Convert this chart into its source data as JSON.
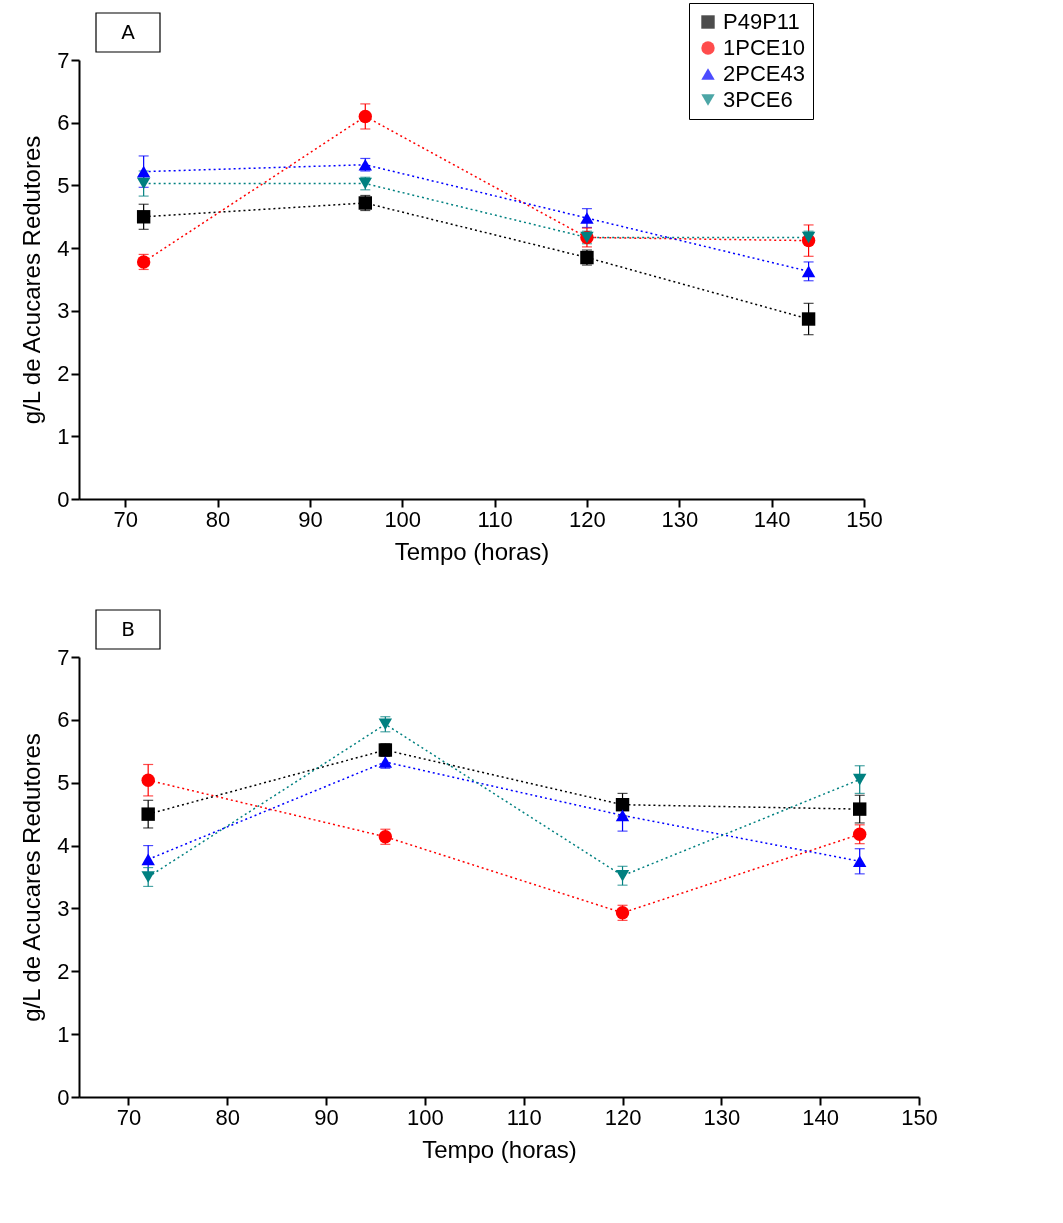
{
  "chart_data": [
    {
      "type": "line",
      "annotations": [
        "A"
      ],
      "xlabel": "Tempo (horas)",
      "ylabel": "g/L de Acucares Redutores",
      "x": [
        72,
        96,
        120,
        144
      ],
      "xlim": [
        65,
        150
      ],
      "xticks": [
        70,
        80,
        90,
        100,
        110,
        120,
        130,
        140,
        150
      ],
      "ylim": [
        0,
        7
      ],
      "yticks": [
        0,
        1,
        2,
        3,
        4,
        5,
        6,
        7
      ],
      "grid": false,
      "legend": "top right",
      "line_style": "dotted",
      "series": [
        {
          "name": "P49P11",
          "color": "#000000",
          "marker": "square",
          "values": [
            4.5,
            4.72,
            3.85,
            2.87
          ],
          "errors": [
            0.2,
            0.12,
            0.12,
            0.25
          ]
        },
        {
          "name": "1PCE10",
          "color": "#ff0000",
          "marker": "circle",
          "values": [
            3.78,
            6.1,
            4.17,
            4.12
          ],
          "errors": [
            0.12,
            0.2,
            0.15,
            0.25
          ]
        },
        {
          "name": "2PCE43",
          "color": "#0000ff",
          "marker": "triangle",
          "values": [
            5.22,
            5.33,
            4.48,
            3.63
          ],
          "errors": [
            0.25,
            0.1,
            0.15,
            0.15
          ]
        },
        {
          "name": "3PCE6",
          "color": "#008080",
          "marker": "triangle-down",
          "values": [
            5.03,
            5.03,
            4.17,
            4.17
          ],
          "errors": [
            0.2,
            0.1,
            0.1,
            0.1
          ]
        }
      ]
    },
    {
      "type": "line",
      "annotations": [
        "B"
      ],
      "xlabel": "Tempo (horas)",
      "ylabel": "g/L de Acucares Redutores",
      "x": [
        72,
        96,
        120,
        144
      ],
      "xlim": [
        65,
        150
      ],
      "xticks": [
        70,
        80,
        90,
        100,
        110,
        120,
        130,
        140,
        150
      ],
      "ylim": [
        0,
        7
      ],
      "yticks": [
        0,
        1,
        2,
        3,
        4,
        5,
        6,
        7
      ],
      "grid": false,
      "legend": "top right",
      "line_style": "dotted",
      "series": [
        {
          "name": "P49P11",
          "color": "#000000",
          "marker": "square",
          "values": [
            4.5,
            5.52,
            4.65,
            4.58
          ],
          "errors": [
            0.22,
            0.1,
            0.18,
            0.22
          ]
        },
        {
          "name": "1PCE10",
          "color": "#ff0000",
          "marker": "circle",
          "values": [
            5.04,
            4.14,
            2.93,
            4.18
          ],
          "errors": [
            0.25,
            0.12,
            0.12,
            0.15
          ]
        },
        {
          "name": "2PCE43",
          "color": "#0000ff",
          "marker": "triangle",
          "values": [
            3.78,
            5.33,
            4.48,
            3.75
          ],
          "errors": [
            0.22,
            0.1,
            0.25,
            0.2
          ]
        },
        {
          "name": "3PCE6",
          "color": "#008080",
          "marker": "triangle-down",
          "values": [
            3.5,
            5.93,
            3.52,
            5.05
          ],
          "errors": [
            0.15,
            0.12,
            0.15,
            0.22
          ]
        }
      ]
    }
  ]
}
